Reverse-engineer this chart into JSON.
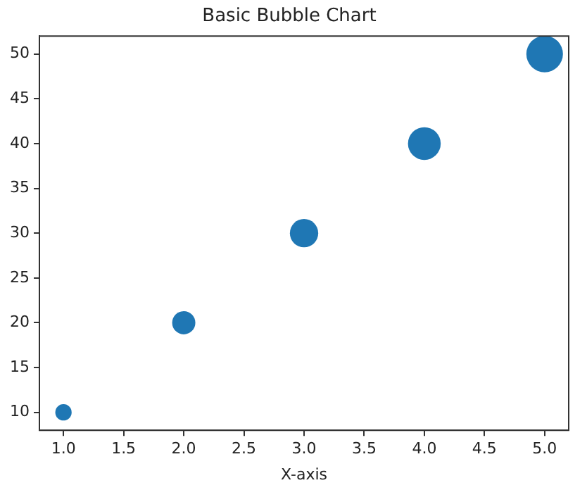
{
  "chart_data": {
    "type": "bubble",
    "title": "Basic Bubble Chart",
    "xlabel": "X-axis",
    "x": [
      1,
      2,
      3,
      4,
      5
    ],
    "series": [
      {
        "color": "#1f77b4",
        "values": [
          10,
          20,
          30,
          40,
          50
        ],
        "sizes": [
          0.2,
          0.4,
          0.6,
          0.8,
          1
        ]
      }
    ],
    "xlim": [
      0.8,
      5.2
    ],
    "xticks": [
      {
        "value": 1,
        "label": "1.0"
      },
      {
        "value": 1.5,
        "label": "1.5"
      },
      {
        "value": 2,
        "label": "2.0"
      },
      {
        "value": 2.5,
        "label": "2.5"
      },
      {
        "value": 3,
        "label": "3.0"
      },
      {
        "value": 3.5,
        "label": "3.5"
      },
      {
        "value": 4,
        "label": "4.0"
      },
      {
        "value": 4.5,
        "label": "4.5"
      },
      {
        "value": 5,
        "label": "5.0"
      }
    ],
    "ylim": [
      8,
      52
    ],
    "yticks": [
      10,
      15,
      20,
      25,
      30,
      35,
      40,
      45,
      50
    ],
    "grid": false,
    "legend": false
  }
}
